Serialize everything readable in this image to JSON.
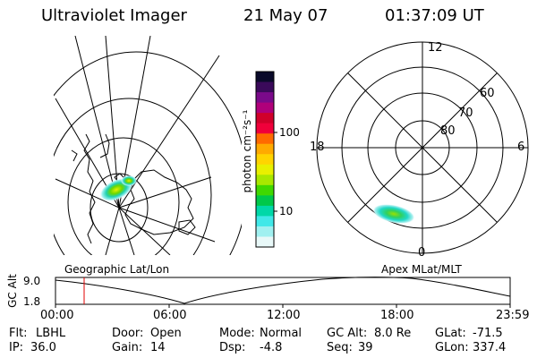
{
  "header": {
    "instrument": "Ultraviolet Imager",
    "date": "21 May 07",
    "time": "01:37:09 UT"
  },
  "colorbar": {
    "unit_label": "photon cm⁻²s⁻¹",
    "tick_labels": [
      "100",
      "10"
    ],
    "colors": [
      "#0a0a2a",
      "#3a0a5a",
      "#7a0a8a",
      "#b0007a",
      "#d0002a",
      "#f0003a",
      "#ff6a00",
      "#ffaa00",
      "#ffd400",
      "#e8f000",
      "#a8e800",
      "#40d800",
      "#00c84a",
      "#00d8a8",
      "#40e8e8",
      "#a0f0f0",
      "#e8f8f8"
    ]
  },
  "geo_panel": {
    "label": "Geographic Lat/Lon"
  },
  "polar_panel": {
    "label": "Apex MLat/MLT",
    "mlt_labels": {
      "top": "12",
      "left": "18",
      "right": "6",
      "bottom": "0"
    },
    "lat_labels": [
      "60",
      "70",
      "80"
    ]
  },
  "timeline": {
    "ylabel": "GC Alt",
    "yticks": [
      "9.0",
      "1.8"
    ],
    "xticks": [
      "00:00",
      "06:00",
      "12:00",
      "18:00",
      "23:59"
    ],
    "marker_time": "01:37"
  },
  "status": {
    "flt_label": "Flt:",
    "flt_value": "LBHL",
    "ip_label": "IP:",
    "ip_value": "36.0",
    "door_label": "Door:",
    "door_value": "Open",
    "gain_label": "Gain:",
    "gain_value": "14",
    "mode_label": "Mode:",
    "mode_value": "Normal",
    "dsp_label": "Dsp:",
    "dsp_value": "-4.8",
    "gcalt_label": "GC Alt:",
    "gcalt_value": "8.0 Re",
    "seq_label": "Seq:",
    "seq_value": "39",
    "glat_label": "GLat:",
    "glat_value": "-71.5",
    "glon_label": "GLon:",
    "glon_value": "337.4"
  },
  "colors": {
    "marker": "#e00000",
    "ink": "#000000"
  }
}
